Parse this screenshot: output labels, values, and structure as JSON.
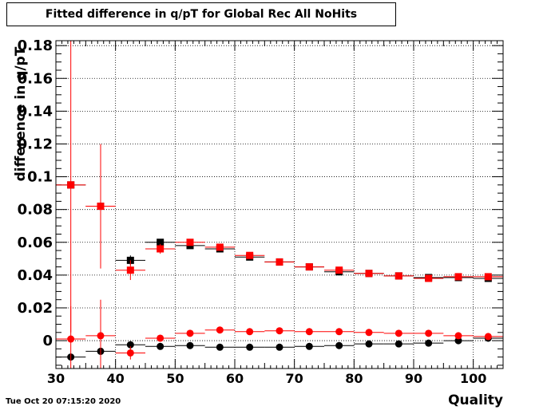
{
  "chart_data": {
    "type": "scatter",
    "title": "Fitted difference in q/pT for Global Rec All NoHits",
    "xlabel": "Quality",
    "ylabel": "difference in q/pT",
    "xlim": [
      30,
      105
    ],
    "ylim": [
      -0.017,
      0.183
    ],
    "x_ticks": [
      30,
      40,
      50,
      60,
      70,
      80,
      90,
      100
    ],
    "x_tick_labels": [
      "30",
      "40",
      "50",
      "60",
      "70",
      "80",
      "90",
      "100"
    ],
    "y_ticks": [
      0,
      0.02,
      0.04,
      0.06,
      0.08,
      0.1,
      0.12,
      0.14,
      0.16,
      0.18
    ],
    "y_tick_labels": [
      "0",
      "0.02",
      "0.04",
      "0.06",
      "0.08",
      "0.1",
      "0.12",
      "0.14",
      "0.16",
      "0.18"
    ],
    "grid": true,
    "bin_width": 5,
    "series": [
      {
        "marker": "square",
        "color": "#000000",
        "x": [
          32.5,
          37.5,
          42.5,
          47.5,
          52.5,
          57.5,
          62.5,
          67.5,
          72.5,
          77.5,
          82.5,
          87.5,
          92.5,
          97.5,
          102.5
        ],
        "y": [
          0.095,
          0.082,
          0.049,
          0.06,
          0.058,
          0.056,
          0.051,
          0.048,
          0.045,
          0.042,
          0.041,
          0.0395,
          0.0385,
          0.0385,
          0.038
        ],
        "yerr": [
          0.002,
          0.002,
          0.003,
          0.002,
          0.001,
          0.001,
          0.001,
          0.001,
          0.001,
          0.001,
          0.0005,
          0.0005,
          0.0005,
          0.0005,
          0.0005
        ]
      },
      {
        "marker": "square",
        "color": "#ff0000",
        "x": [
          32.5,
          37.5,
          42.5,
          47.5,
          52.5,
          57.5,
          62.5,
          67.5,
          72.5,
          77.5,
          82.5,
          87.5,
          92.5,
          97.5,
          102.5
        ],
        "y": [
          0.095,
          0.082,
          0.043,
          0.056,
          0.06,
          0.057,
          0.052,
          0.048,
          0.045,
          0.043,
          0.041,
          0.0395,
          0.038,
          0.039,
          0.039
        ],
        "yerr": [
          0.09,
          0.038,
          0.006,
          0.003,
          0.001,
          0.001,
          0.001,
          0.001,
          0.001,
          0.001,
          0.0005,
          0.0005,
          0.0005,
          0.0005,
          0.0005
        ]
      },
      {
        "marker": "circle",
        "color": "#000000",
        "x": [
          32.5,
          37.5,
          42.5,
          47.5,
          52.5,
          57.5,
          62.5,
          67.5,
          72.5,
          77.5,
          82.5,
          87.5,
          92.5,
          97.5,
          102.5
        ],
        "y": [
          -0.01,
          -0.0065,
          -0.0025,
          -0.0035,
          -0.003,
          -0.004,
          -0.004,
          -0.004,
          -0.0035,
          -0.003,
          -0.002,
          -0.002,
          -0.0015,
          0.0,
          0.0015
        ],
        "yerr": [
          0.002,
          0.002,
          0.002,
          0.002,
          0.001,
          0.001,
          0.001,
          0.001,
          0.001,
          0.001,
          0.0005,
          0.0005,
          0.0005,
          0.0005,
          0.0005
        ]
      },
      {
        "marker": "circle",
        "color": "#ff0000",
        "x": [
          32.5,
          37.5,
          42.5,
          47.5,
          52.5,
          57.5,
          62.5,
          67.5,
          72.5,
          77.5,
          82.5,
          87.5,
          92.5,
          97.5,
          102.5
        ],
        "y": [
          0.001,
          0.003,
          -0.0075,
          0.0015,
          0.0045,
          0.0065,
          0.0055,
          0.006,
          0.0055,
          0.0055,
          0.005,
          0.0045,
          0.0045,
          0.003,
          0.0025
        ],
        "yerr": [
          0.02,
          0.022,
          0.004,
          0.002,
          0.001,
          0.001,
          0.001,
          0.001,
          0.001,
          0.001,
          0.0005,
          0.0005,
          0.0005,
          0.0005,
          0.0005
        ]
      }
    ]
  },
  "datestamp": "Tue Oct 20 07:15:20 2020"
}
